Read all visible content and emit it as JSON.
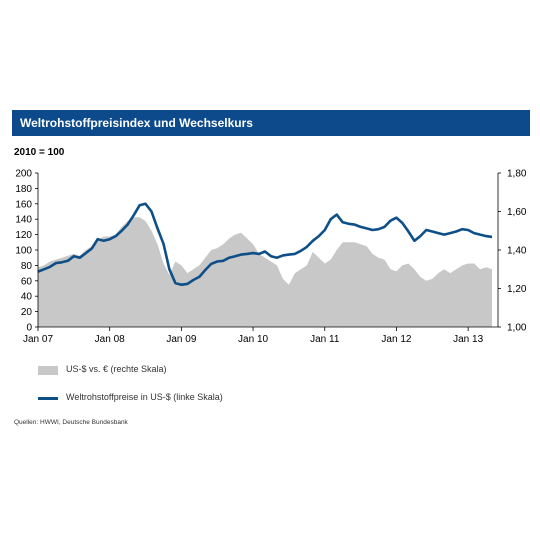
{
  "header": {
    "title": "Weltrohstoffpreisindex  und Wechselkurs",
    "base_label": "2010 = 100"
  },
  "legend": {
    "area_label": "US-$ vs. € (rechte Skala)",
    "line_label": "Weltrohstoffpreise in US-$ (linke Skala)"
  },
  "source": "Quellen: HWWI, Deutsche Bundesbank",
  "colors": {
    "line": "#0e4f87",
    "area": "#c8c8c8",
    "title_bg": "#0d4a8c"
  },
  "chart_data": {
    "type": "line",
    "x_ticks": [
      "Jan 07",
      "Jan 08",
      "Jan 09",
      "Jan 10",
      "Jan 11",
      "Jan 12",
      "Jan 13"
    ],
    "left_axis": {
      "ylim": [
        0,
        200
      ],
      "ticks": [
        "0",
        "20",
        "40",
        "60",
        "80",
        "100",
        "120",
        "140",
        "160",
        "180",
        "200"
      ]
    },
    "right_axis": {
      "ylim": [
        1.0,
        1.8
      ],
      "ticks": [
        "1,00",
        "1,20",
        "1,40",
        "1,60",
        "1,80"
      ]
    },
    "x_range": [
      0,
      77
    ],
    "series": [
      {
        "name": "Weltrohstoffpreise in US-$ (linke Skala)",
        "axis": "left",
        "type": "line",
        "values": [
          [
            0,
            72
          ],
          [
            1,
            75
          ],
          [
            2,
            78
          ],
          [
            3,
            83
          ],
          [
            4,
            84
          ],
          [
            5,
            86
          ],
          [
            6,
            92
          ],
          [
            7,
            90
          ],
          [
            8,
            96
          ],
          [
            9,
            102
          ],
          [
            10,
            114
          ],
          [
            11,
            112
          ],
          [
            12,
            114
          ],
          [
            13,
            118
          ],
          [
            14,
            125
          ],
          [
            15,
            133
          ],
          [
            16,
            145
          ],
          [
            17,
            158
          ],
          [
            18,
            160
          ],
          [
            19,
            150
          ],
          [
            20,
            128
          ],
          [
            21,
            108
          ],
          [
            22,
            75
          ],
          [
            23,
            57
          ],
          [
            24,
            55
          ],
          [
            25,
            56
          ],
          [
            26,
            61
          ],
          [
            27,
            65
          ],
          [
            28,
            74
          ],
          [
            29,
            82
          ],
          [
            30,
            85
          ],
          [
            31,
            86
          ],
          [
            32,
            90
          ],
          [
            33,
            92
          ],
          [
            34,
            94
          ],
          [
            35,
            95
          ],
          [
            36,
            96
          ],
          [
            37,
            95
          ],
          [
            38,
            98
          ],
          [
            39,
            92
          ],
          [
            40,
            90
          ],
          [
            41,
            93
          ],
          [
            42,
            94
          ],
          [
            43,
            95
          ],
          [
            44,
            99
          ],
          [
            45,
            104
          ],
          [
            46,
            112
          ],
          [
            47,
            118
          ],
          [
            48,
            126
          ],
          [
            49,
            140
          ],
          [
            50,
            146
          ],
          [
            51,
            136
          ],
          [
            52,
            134
          ],
          [
            53,
            133
          ],
          [
            54,
            130
          ],
          [
            55,
            128
          ],
          [
            56,
            126
          ],
          [
            57,
            127
          ],
          [
            58,
            130
          ],
          [
            59,
            138
          ],
          [
            60,
            142
          ],
          [
            61,
            135
          ],
          [
            62,
            124
          ],
          [
            63,
            112
          ],
          [
            64,
            118
          ],
          [
            65,
            126
          ],
          [
            66,
            124
          ],
          [
            67,
            122
          ],
          [
            68,
            120
          ],
          [
            69,
            122
          ],
          [
            70,
            124
          ],
          [
            71,
            127
          ],
          [
            72,
            126
          ],
          [
            73,
            122
          ],
          [
            74,
            120
          ],
          [
            75,
            118
          ],
          [
            76,
            117
          ]
        ]
      },
      {
        "name": "US-$ vs. € (rechte Skala)",
        "axis": "right",
        "type": "area",
        "values": [
          [
            0,
            1.31
          ],
          [
            1,
            1.32
          ],
          [
            2,
            1.34
          ],
          [
            3,
            1.35
          ],
          [
            4,
            1.36
          ],
          [
            5,
            1.37
          ],
          [
            6,
            1.38
          ],
          [
            7,
            1.37
          ],
          [
            8,
            1.4
          ],
          [
            9,
            1.42
          ],
          [
            10,
            1.45
          ],
          [
            11,
            1.47
          ],
          [
            12,
            1.47
          ],
          [
            13,
            1.48
          ],
          [
            14,
            1.52
          ],
          [
            15,
            1.55
          ],
          [
            16,
            1.57
          ],
          [
            17,
            1.57
          ],
          [
            18,
            1.55
          ],
          [
            19,
            1.5
          ],
          [
            20,
            1.43
          ],
          [
            21,
            1.33
          ],
          [
            22,
            1.27
          ],
          [
            23,
            1.34
          ],
          [
            24,
            1.32
          ],
          [
            25,
            1.28
          ],
          [
            26,
            1.3
          ],
          [
            27,
            1.32
          ],
          [
            28,
            1.36
          ],
          [
            29,
            1.4
          ],
          [
            30,
            1.41
          ],
          [
            31,
            1.43
          ],
          [
            32,
            1.46
          ],
          [
            33,
            1.48
          ],
          [
            34,
            1.49
          ],
          [
            35,
            1.46
          ],
          [
            36,
            1.43
          ],
          [
            37,
            1.38
          ],
          [
            38,
            1.36
          ],
          [
            39,
            1.34
          ],
          [
            40,
            1.32
          ],
          [
            41,
            1.25
          ],
          [
            42,
            1.22
          ],
          [
            43,
            1.28
          ],
          [
            44,
            1.3
          ],
          [
            45,
            1.32
          ],
          [
            46,
            1.39
          ],
          [
            47,
            1.36
          ],
          [
            48,
            1.33
          ],
          [
            49,
            1.35
          ],
          [
            50,
            1.4
          ],
          [
            51,
            1.44
          ],
          [
            52,
            1.44
          ],
          [
            53,
            1.44
          ],
          [
            54,
            1.43
          ],
          [
            55,
            1.42
          ],
          [
            56,
            1.38
          ],
          [
            57,
            1.36
          ],
          [
            58,
            1.35
          ],
          [
            59,
            1.3
          ],
          [
            60,
            1.29
          ],
          [
            61,
            1.32
          ],
          [
            62,
            1.33
          ],
          [
            63,
            1.3
          ],
          [
            64,
            1.26
          ],
          [
            65,
            1.24
          ],
          [
            66,
            1.25
          ],
          [
            67,
            1.28
          ],
          [
            68,
            1.3
          ],
          [
            69,
            1.28
          ],
          [
            70,
            1.3
          ],
          [
            71,
            1.32
          ],
          [
            72,
            1.33
          ],
          [
            73,
            1.33
          ],
          [
            74,
            1.3
          ],
          [
            75,
            1.31
          ],
          [
            76,
            1.3
          ]
        ]
      }
    ],
    "grid": false,
    "legend_position": "bottom"
  }
}
